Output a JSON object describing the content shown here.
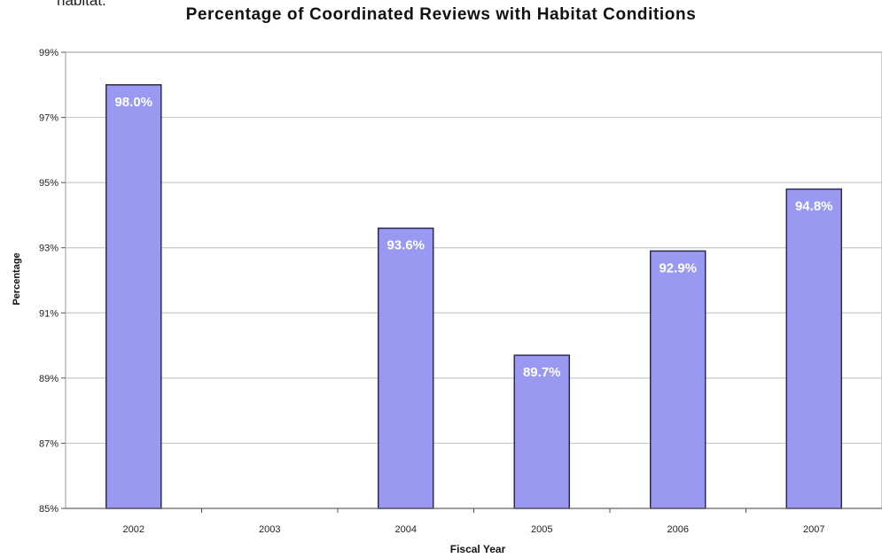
{
  "cut_off_text": "habitat.",
  "chart_data": {
    "type": "bar",
    "title": "Percentage of Coordinated Reviews with Habitat Conditions",
    "xlabel": "Fiscal Year",
    "ylabel": "Percentage",
    "categories": [
      "2002",
      "2003",
      "2004",
      "2005",
      "2006",
      "2007"
    ],
    "values": [
      98.0,
      null,
      93.6,
      89.7,
      92.9,
      94.8
    ],
    "data_labels": [
      "98.0%",
      "",
      "93.6%",
      "89.7%",
      "92.9%",
      "94.8%"
    ],
    "ylim": [
      85,
      99
    ],
    "yticks": [
      85,
      87,
      89,
      91,
      93,
      95,
      97,
      99
    ],
    "ytick_labels": [
      "85%",
      "87%",
      "89%",
      "91%",
      "93%",
      "95%",
      "97%",
      "99%"
    ],
    "grid": true,
    "colors": {
      "bar_fill": "#9999f2",
      "bar_stroke": "#2a2a55",
      "data_label": "#ffffff",
      "gridline": "#c8c8c8",
      "plot_border": "#9a9a9a"
    }
  }
}
